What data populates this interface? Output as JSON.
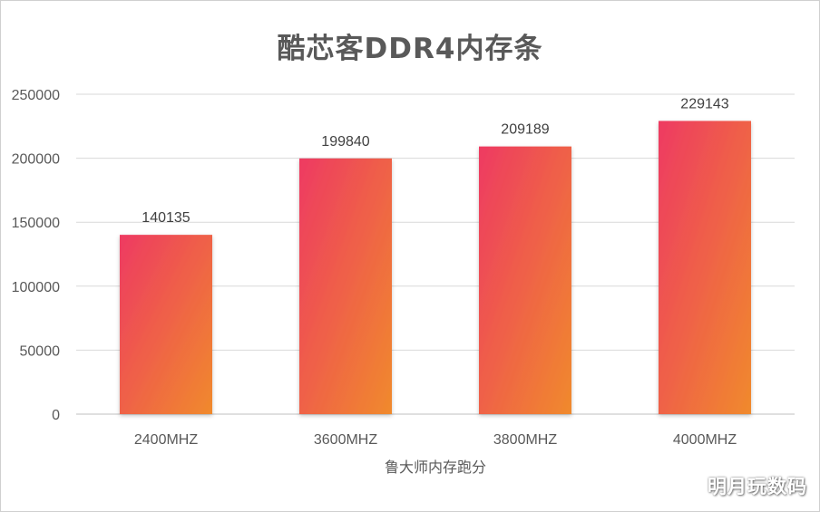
{
  "chart_data": {
    "type": "bar",
    "title": "酷芯客DDR4内存条",
    "categories": [
      "2400MHZ",
      "3600MHZ",
      "3800MHZ",
      "4000MHZ"
    ],
    "values": [
      140135,
      199840,
      209189,
      229143
    ],
    "xlabel": "鲁大师内存跑分",
    "ylabel": "",
    "ylim": [
      0,
      250000
    ],
    "yticks": [
      0,
      50000,
      100000,
      150000,
      200000,
      250000
    ],
    "grid": true,
    "legend": "none",
    "bar_gradient": [
      "#ee3a62",
      "#f08a2c"
    ]
  },
  "watermark": "明月玩数码"
}
